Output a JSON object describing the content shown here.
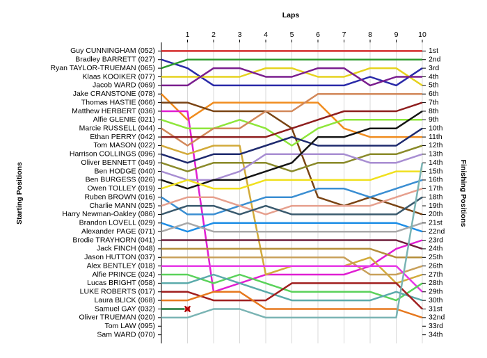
{
  "chart_data": {
    "type": "line",
    "title": "Laps",
    "y_label": "Starting Positions",
    "y2_label": "Finishing Positions",
    "x": [
      0,
      1,
      2,
      3,
      4,
      5,
      6,
      7,
      8,
      9,
      10
    ],
    "xlim": [
      0,
      10
    ],
    "xticks": [
      1,
      2,
      3,
      4,
      5,
      6,
      7,
      8,
      9,
      10
    ],
    "ylim": [
      35,
      0
    ],
    "y2lim": [
      35,
      0
    ],
    "y2ticks": [
      {
        "value": 1,
        "label": "1st"
      },
      {
        "value": 2,
        "label": "2nd"
      },
      {
        "value": 3,
        "label": "3rd"
      },
      {
        "value": 4,
        "label": "4th"
      },
      {
        "value": 5,
        "label": "5th"
      },
      {
        "value": 6,
        "label": "6th"
      },
      {
        "value": 7,
        "label": "7th"
      },
      {
        "value": 8,
        "label": "8th"
      },
      {
        "value": 9,
        "label": "9th"
      },
      {
        "value": 10,
        "label": "10th"
      },
      {
        "value": 11,
        "label": "11th"
      },
      {
        "value": 12,
        "label": "12th"
      },
      {
        "value": 13,
        "label": "13th"
      },
      {
        "value": 14,
        "label": "14th"
      },
      {
        "value": 15,
        "label": "15th"
      },
      {
        "value": 16,
        "label": "16th"
      },
      {
        "value": 17,
        "label": "17th"
      },
      {
        "value": 18,
        "label": "18th"
      },
      {
        "value": 19,
        "label": "19th"
      },
      {
        "value": 20,
        "label": "20th"
      },
      {
        "value": 21,
        "label": "21st"
      },
      {
        "value": 22,
        "label": "22nd"
      },
      {
        "value": 23,
        "label": "23rd"
      },
      {
        "value": 24,
        "label": "24th"
      },
      {
        "value": 25,
        "label": "25th"
      },
      {
        "value": 26,
        "label": "26th"
      },
      {
        "value": 27,
        "label": "27th"
      },
      {
        "value": 28,
        "label": "28th"
      },
      {
        "value": 29,
        "label": "29th"
      },
      {
        "value": 30,
        "label": "30th"
      },
      {
        "value": 31,
        "label": "31st"
      },
      {
        "value": 32,
        "label": "32nd"
      },
      {
        "value": 33,
        "label": "33rd"
      },
      {
        "value": 34,
        "label": "34th"
      }
    ],
    "grid": true,
    "series": [
      {
        "name": "Guy CUNNINGHAM (052)",
        "color": "#d42a2a",
        "values": [
          1,
          1,
          1,
          1,
          1,
          1,
          1,
          1,
          1,
          1,
          1
        ]
      },
      {
        "name": "Bradley BARRETT (027)",
        "color": "#2a2aa8",
        "values": [
          2,
          3,
          5,
          5,
          5,
          5,
          5,
          5,
          4,
          5,
          3
        ]
      },
      {
        "name": "Ryan TAYLOR-TRUEMAN (065)",
        "color": "#2e9a2e",
        "values": [
          3,
          2,
          2,
          2,
          2,
          2,
          2,
          2,
          2,
          2,
          2
        ]
      },
      {
        "name": "Klaas KOOIKER (077)",
        "color": "#e6d21e",
        "values": [
          4,
          4,
          4,
          4,
          3,
          3,
          4,
          4,
          3,
          3,
          5
        ]
      },
      {
        "name": "Jacob WARD (069)",
        "color": "#7a1e8e",
        "values": [
          5,
          5,
          3,
          3,
          4,
          4,
          3,
          3,
          5,
          4,
          4
        ]
      },
      {
        "name": "Jake CRANSTONE (078)",
        "color": "#f08c1e",
        "values": [
          6,
          9,
          7,
          7,
          7,
          7,
          7,
          10,
          11,
          11,
          11
        ]
      },
      {
        "name": "Thomas HASTIE (066)",
        "color": "#7a4414",
        "values": [
          7,
          7,
          8,
          8,
          8,
          10,
          18,
          19,
          18,
          19,
          20
        ]
      },
      {
        "name": "Matthew HERBERT (036)",
        "color": "#e01ed2",
        "values": [
          8,
          8,
          29,
          28,
          27,
          27,
          27,
          27,
          26,
          24,
          23
        ]
      },
      {
        "name": "Alfie GLENIE (021)",
        "color": "#8ee63a",
        "values": [
          9,
          10,
          10,
          9,
          10,
          12,
          10,
          9,
          9,
          9,
          9
        ]
      },
      {
        "name": "Marcie RUSSELL (044)",
        "color": "#d2885a",
        "values": [
          10,
          12,
          10,
          10,
          8,
          8,
          6,
          6,
          6,
          6,
          6
        ]
      },
      {
        "name": "Ethan PERRY (042)",
        "color": "#8e1e1e",
        "values": [
          11,
          11,
          11,
          11,
          11,
          10,
          9,
          8,
          8,
          8,
          7
        ]
      },
      {
        "name": "Tom MASON (022)",
        "color": "#d2aa3a",
        "values": [
          12,
          13,
          12,
          12,
          27,
          26,
          26,
          26,
          25,
          28,
          27
        ]
      },
      {
        "name": "Harrison COLLINGS (096)",
        "color": "#1e2a6e",
        "values": [
          13,
          14,
          13,
          13,
          12,
          11,
          12,
          12,
          12,
          12,
          10
        ]
      },
      {
        "name": "Oliver BENNETT (049)",
        "color": "#8a8a2a",
        "values": [
          14,
          15,
          14,
          14,
          14,
          15,
          14,
          14,
          13,
          13,
          12
        ]
      },
      {
        "name": "Ben HODGE (040)",
        "color": "#a88ed2",
        "values": [
          15,
          16,
          16,
          15,
          13,
          13,
          13,
          13,
          14,
          14,
          13
        ]
      },
      {
        "name": "Ben BURGESS (026)",
        "color": "#141414",
        "values": [
          16,
          17,
          16,
          16,
          15,
          14,
          11,
          11,
          10,
          10,
          8
        ]
      },
      {
        "name": "Owen TOLLEY (019)",
        "color": "#f0e01e",
        "values": [
          17,
          16,
          17,
          17,
          16,
          16,
          16,
          16,
          16,
          15,
          15
        ]
      },
      {
        "name": "Ruben BROWN (016)",
        "color": "#3a8ed2",
        "values": [
          18,
          20,
          20,
          19,
          18,
          18,
          17,
          17,
          18,
          17,
          16
        ]
      },
      {
        "name": "Charlie MANN (025)",
        "color": "#e6a08e",
        "values": [
          19,
          18,
          18,
          19,
          20,
          19,
          19,
          19,
          19,
          18,
          17
        ]
      },
      {
        "name": "Harry Newman-Oakley (086)",
        "color": "#3a5a6e",
        "values": [
          20,
          19,
          19,
          20,
          19,
          20,
          20,
          20,
          20,
          20,
          18
        ]
      },
      {
        "name": "Brandon LOVELL (029)",
        "color": "#1e8ee6",
        "values": [
          21,
          22,
          21,
          21,
          21,
          21,
          21,
          21,
          21,
          21,
          22
        ]
      },
      {
        "name": "Alexander PAGE (071)",
        "color": "#a8a8a8",
        "values": [
          22,
          21,
          22,
          22,
          22,
          22,
          22,
          22,
          22,
          22,
          21
        ]
      },
      {
        "name": "Brodie TRAYHORN (041)",
        "color": "#6e1e3a",
        "values": [
          23,
          23,
          23,
          23,
          23,
          23,
          23,
          23,
          23,
          23,
          24
        ]
      },
      {
        "name": "Jack FINCH (048)",
        "color": "#b48e3a",
        "values": [
          24,
          24,
          24,
          24,
          24,
          24,
          24,
          24,
          24,
          25,
          25
        ]
      },
      {
        "name": "Jason HUTTON (037)",
        "color": "#c8a05a",
        "values": [
          25,
          25,
          25,
          25,
          25,
          25,
          25,
          25,
          27,
          27,
          26
        ]
      },
      {
        "name": "Alex BENTLEY (018)",
        "color": "#e63ae6",
        "values": [
          26,
          26,
          26,
          26,
          26,
          26,
          26,
          26,
          26,
          26,
          29
        ]
      },
      {
        "name": "Alfie PRINCE (024)",
        "color": "#5ad25a",
        "values": [
          27,
          27,
          28,
          27,
          28,
          29,
          29,
          29,
          29,
          30,
          28
        ]
      },
      {
        "name": "Lucas BRIGHT (058)",
        "color": "#5aaaaa",
        "values": [
          28,
          28,
          27,
          28,
          29,
          30,
          30,
          30,
          30,
          29,
          30
        ]
      },
      {
        "name": "LUKE ROBERTS (017)",
        "color": "#a01e1e",
        "values": [
          29,
          29,
          30,
          30,
          30,
          28,
          28,
          28,
          28,
          28,
          31
        ]
      },
      {
        "name": "Laura BLICK (068)",
        "color": "#e6781e",
        "values": [
          30,
          30,
          29,
          29,
          31,
          31,
          31,
          31,
          31,
          31,
          32
        ]
      },
      {
        "name": "Samuel GAY (032)",
        "color": "#1e7a3a",
        "values": [
          31,
          31,
          null,
          null,
          null,
          null,
          null,
          null,
          null,
          null,
          null
        ],
        "retired": true
      },
      {
        "name": "Oliver TRUEMAN (020)",
        "color": "#7ab4b4",
        "values": [
          32,
          32,
          31,
          31,
          32,
          32,
          32,
          32,
          32,
          32,
          14
        ]
      },
      {
        "name": "Tom LAW (095)",
        "color": "#888888",
        "values": [
          33,
          null,
          null,
          null,
          null,
          null,
          null,
          null,
          null,
          null,
          null
        ]
      },
      {
        "name": "Sam WARD (070)",
        "color": "#888888",
        "values": [
          34,
          null,
          null,
          null,
          null,
          null,
          null,
          null,
          null,
          null,
          null
        ]
      }
    ]
  }
}
